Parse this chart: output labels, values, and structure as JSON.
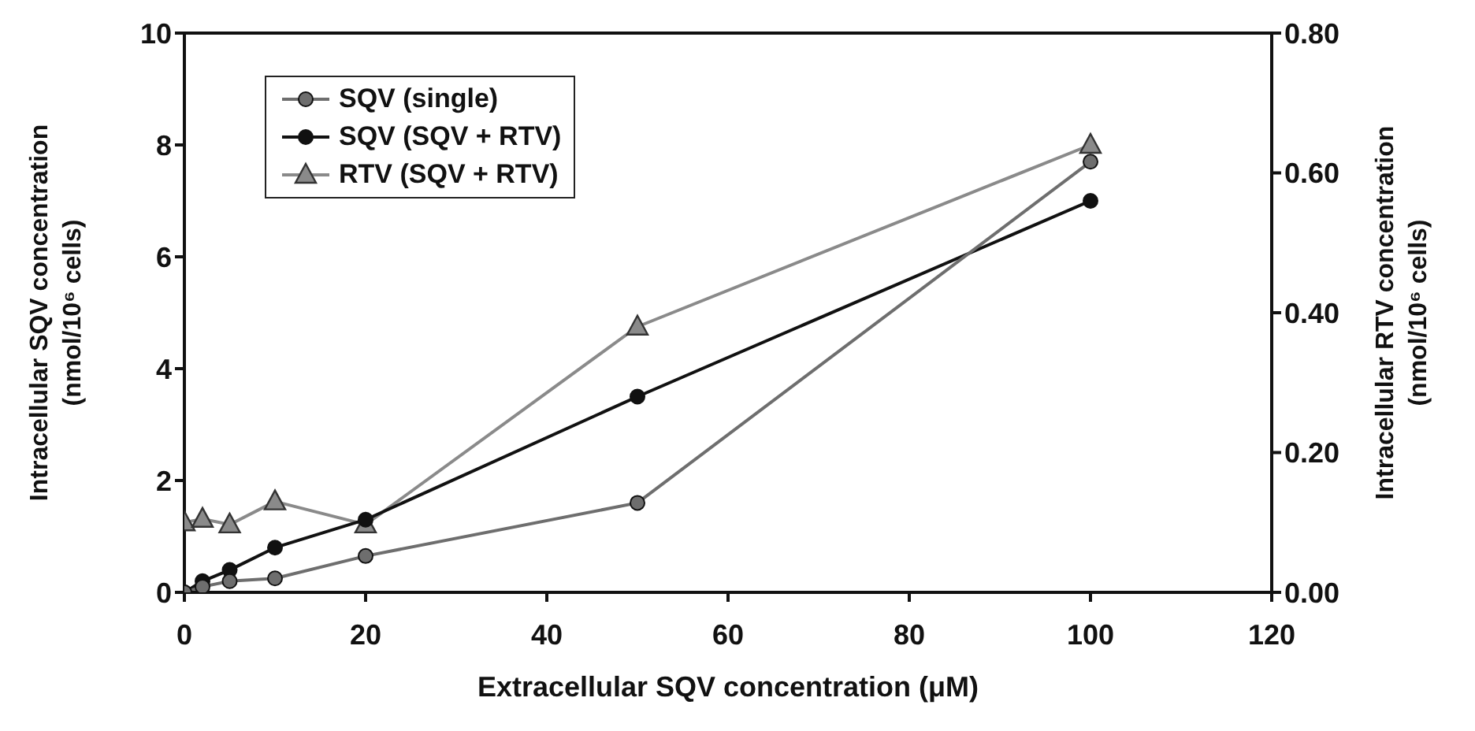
{
  "chart_data": {
    "type": "line",
    "xlabel": "Extracellular SQV concentration (μM)",
    "ylabel": "Intracellular SQV concentration\n(nmol/10⁶ cells)",
    "y2label": "Intracellular RTV concentration\n(nmol/10⁶ cells)",
    "x": [
      0,
      2,
      5,
      10,
      20,
      50,
      100
    ],
    "series": [
      {
        "name": "SQV (single)",
        "color": "#6e6e6e",
        "marker": "circle",
        "values": [
          0,
          0.1,
          0.2,
          0.25,
          0.65,
          1.6,
          7.7
        ]
      },
      {
        "name": "SQV (SQV + RTV)",
        "color": "#111111",
        "marker": "circle",
        "values": [
          0,
          0.2,
          0.4,
          0.8,
          1.3,
          3.5,
          7.0
        ]
      },
      {
        "name": "RTV (SQV + RTV)",
        "color": "#8a8a8a",
        "marker": "triangle",
        "axis": "y2",
        "values": [
          0.1,
          0.105,
          0.097,
          0.13,
          0.097,
          0.38,
          0.64
        ]
      }
    ],
    "xlim": [
      0,
      120
    ],
    "xticks": [
      0,
      20,
      40,
      60,
      80,
      100,
      120
    ],
    "ylim": [
      0,
      10
    ],
    "yticks": [
      0,
      2,
      4,
      6,
      8,
      10
    ],
    "y2lim": [
      0,
      0.8
    ],
    "y2ticks": [
      {
        "value": 0,
        "label": "0.00"
      },
      {
        "value": 0.2,
        "label": "0.20"
      },
      {
        "value": 0.4,
        "label": "0.40"
      },
      {
        "value": 0.6,
        "label": "0.60"
      },
      {
        "value": 0.8,
        "label": "0.80"
      }
    ],
    "grid": false,
    "legend": "top left"
  }
}
